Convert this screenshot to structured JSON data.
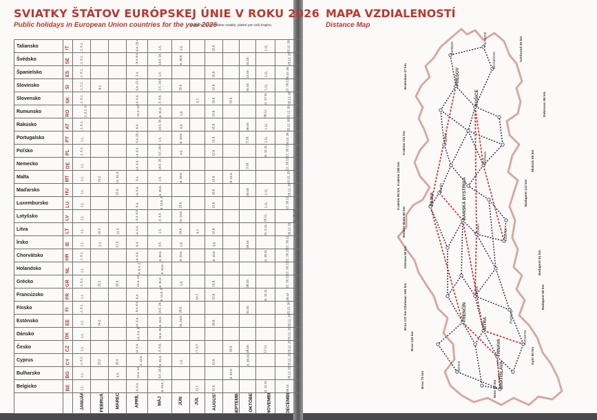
{
  "left_page": {
    "title": "SVIATKY ŠTÁTOV EURÓPSKEJ ÚNIE V ROKU 2026",
    "subtitle": "Public holidays in European Union countries for the year 2026",
    "note": "Uvedené sú len štátne sviatky, platné pre celú krajinu."
  },
  "table": {
    "months": [
      "JANUÁR",
      "FEBRUÁR",
      "MAREC",
      "APRÍL",
      "MÁJ",
      "JÚN",
      "JÚL",
      "AUGUST",
      "SEPTEMBER",
      "OKTÓBER",
      "NOVEMBER",
      "DECEMBER"
    ],
    "countries": [
      {
        "name": "Taliansko",
        "code": "IT",
        "cells": [
          "1.1. 6.1.",
          "",
          "",
          "5.4. 6.4. 25.4.",
          "1.5.",
          "2.6.",
          "",
          "15.8.",
          "",
          "",
          "1.11.",
          "8.12. 25.12. 26.12."
        ]
      },
      {
        "name": "Švédsko",
        "code": "SE",
        "cells": [
          "1.1. 6.1.",
          "",
          "",
          "3.4. 5.4. 6.4.",
          "1.5. 14.5. 24.5.",
          "6.6. 20.6.",
          "",
          "",
          "",
          "31.10.",
          "",
          "24.12. 25.12. 26.12."
        ]
      },
      {
        "name": "Španielsko",
        "code": "ES",
        "cells": [
          "1.1. 6.1.",
          "",
          "",
          "3.4.",
          "1.5.",
          "",
          "",
          "15.8.",
          "",
          "12.10.",
          "1.11.",
          "6.12. 8.12. 25.12."
        ]
      },
      {
        "name": "Slovinsko",
        "code": "SI",
        "cells": [
          "1.1. 2.1.",
          "8.2.",
          "",
          "5.4. 6.4. 27.4.",
          "1.5. 2.5. 24.5.",
          "25.6.",
          "",
          "15.8.",
          "",
          "31.10.",
          "1.11.",
          "25.12. 26.12."
        ]
      },
      {
        "name": "Slovensko",
        "code": "SK",
        "cells": [
          "1.1. 6.1.",
          "",
          "",
          "3.4. 6.4.",
          "1.5. 8.5.",
          "",
          "5.7.",
          "29.8.",
          "15.9.",
          "",
          "1.11. 17.11.",
          "24.12. 25.12. 26.12."
        ]
      },
      {
        "name": "Rumunsko",
        "code": "RO",
        "cells": [
          "1.1. 2.1. 6.1. 24.1.",
          "",
          "",
          "10.4. 12.4. 13.4.",
          "1.5. 31.5.",
          "1.6.",
          "",
          "15.8.",
          "",
          "",
          "30.11.",
          "1.12. 25.12. 26.12."
        ]
      },
      {
        "name": "Rakúsko",
        "code": "AT",
        "cells": [
          "1.1. 6.1.",
          "",
          "",
          "6.4.",
          "1.5. 14.5. 25.5.",
          "4.6.",
          "",
          "15.8.",
          "",
          "26.10.",
          "1.11.",
          "8.12. 25.12. 26.12."
        ]
      },
      {
        "name": "Portugalsko",
        "code": "PT",
        "cells": [
          "1.1.",
          "",
          "",
          "3.4. 5.4. 25.4.",
          "1.5.",
          "4.6. 10.6.",
          "",
          "15.8.",
          "",
          "5.10.",
          "1.11.",
          "1.12. 8.12. 25.12."
        ]
      },
      {
        "name": "Poľsko",
        "code": "PL",
        "cells": [
          "1.1. 6.1.",
          "",
          "",
          "5.4. 6.4.",
          "1.5. 3.5. 24.5.",
          "4.6.",
          "",
          "15.8.",
          "",
          "",
          "1.11. 11.11.",
          "25.12. 26.12."
        ]
      },
      {
        "name": "Nemecko",
        "code": "DE",
        "cells": [
          "1.1.",
          "",
          "",
          "3.4. 6.4.",
          "1.5. 14.5. 25.5.",
          "",
          "",
          "",
          "",
          "3.10.",
          "",
          "25.12. 26.12."
        ]
      },
      {
        "name": "Malta",
        "code": "MT",
        "cells": [
          "1.1.",
          "10.2.",
          "19.3. 31.3.",
          "3.4.",
          "1.5.",
          "7.6. 29.6.",
          "",
          "15.8.",
          "8.9. 21.9.",
          "",
          "",
          "8.12. 13.12. 25.12."
        ]
      },
      {
        "name": "Maďarsko",
        "code": "HU",
        "cells": [
          "1.1.",
          "",
          "15.3.",
          "3.4. 6.4.",
          "1.5. 25.5.",
          "",
          "",
          "20.8.",
          "",
          "23.10.",
          "1.11.",
          "24.12. 25.12. 26.12."
        ]
      },
      {
        "name": "Luxembursko",
        "code": "LU",
        "cells": [
          "1.1.",
          "",
          "",
          "6.4.",
          "1.5. 9.5. 14.5. 25.5.",
          "23.6.",
          "",
          "15.8.",
          "",
          "",
          "1.11.",
          "25.12. 26.12."
        ]
      },
      {
        "name": "Lotyšsko",
        "code": "LV",
        "cells": [
          "1.1.",
          "",
          "",
          "3.4. 5.4. 6.4.",
          "1.5. 4.5.",
          "23.6. 24.6.",
          "",
          "",
          "",
          "",
          "18.11.",
          "24.12. 25.12. 26.12. 31.12."
        ]
      },
      {
        "name": "Litva",
        "code": "LT",
        "cells": [
          "1.1.",
          "16.2.",
          "11.3.",
          "5.4. 6.4.",
          "1.5.",
          "24.6.",
          "6.7.",
          "15.8.",
          "",
          "",
          "1.11. 2.11.",
          "24.12. 25.12. 26.12."
        ]
      },
      {
        "name": "Írsko",
        "code": "IE",
        "cells": [
          "1.1.",
          "2.2.",
          "17.3.",
          "6.4.",
          "4.5.",
          "1.6.",
          "",
          "3.8.",
          "",
          "26.10.",
          "",
          "25.12. 26.12."
        ]
      },
      {
        "name": "Chorvátsko",
        "code": "HR",
        "cells": [
          "1.1. 6.1.",
          "",
          "",
          "5.4. 6.4.",
          "1.5. 30.5.",
          "4.6. 22.6.",
          "",
          "5.8. 15.8.",
          "",
          "",
          "1.11. 18.11.",
          "25.12. 26.12."
        ]
      },
      {
        "name": "Holandsko",
        "code": "NL",
        "cells": [
          "1.1.",
          "",
          "",
          "3.4. 5.4. 6.4. 27.4.",
          "5.5. 14.5. 24.5. 25.5.",
          "",
          "",
          "",
          "",
          "",
          "",
          "25.12. 26.12."
        ]
      },
      {
        "name": "Grécko",
        "code": "GR",
        "cells": [
          "1.1. 6.1.",
          "23.2.",
          "25.3.",
          "10.4. 12.4. 13.4.",
          "1.5. 31.5.",
          "1.6.",
          "",
          "15.8.",
          "",
          "28.10.",
          "",
          "25.12. 26.12."
        ]
      },
      {
        "name": "Francúzsko",
        "code": "FR",
        "cells": [
          "1.1.",
          "",
          "",
          "6.4.",
          "1.5. 8.5. 14.5. 25.5.",
          "",
          "14.7.",
          "15.8.",
          "",
          "",
          "1.11. 11.11.",
          "25.12."
        ]
      },
      {
        "name": "Fínsko",
        "code": "FI",
        "cells": [
          "1.1. 6.1.",
          "",
          "",
          "3.4. 5.4. 6.4.",
          "1.5. 14.5. 24.5.",
          "20.6.",
          "",
          "",
          "",
          "31.10.",
          "",
          "6.12. 25.12. 26.12."
        ]
      },
      {
        "name": "Estónsko",
        "code": "EE",
        "cells": [
          "1.1.",
          "24.2.",
          "",
          "3.4. 5.4.",
          "1.5. 24.5.",
          "23.6. 24.6.",
          "",
          "20.8.",
          "",
          "",
          "",
          "24.12. 25.12. 26.12."
        ]
      },
      {
        "name": "Dánsko",
        "code": "DK",
        "cells": [
          "1.1.",
          "",
          "",
          "2.4. 3.4. 5.4. 6.4.",
          "14.5. 24.5. 25.5.",
          "",
          "",
          "",
          "",
          "",
          "",
          "24.12. 25.12. 26.12."
        ]
      },
      {
        "name": "Česko",
        "code": "CZ",
        "cells": [
          "1.1.",
          "",
          "",
          "3.4. 6.4.",
          "1.5. 8.5.",
          "",
          "5.7. 6.7.",
          "",
          "28.9.",
          "28.10.",
          "17.11.",
          "24.12. 25.12. 26.12."
        ]
      },
      {
        "name": "Cyprus",
        "code": "CY",
        "cells": [
          "1.1. 6.1.",
          "23.2.",
          "25.3.",
          "1.4. 10.4. 12.4. 13.4.",
          "1.5. 31.5.",
          "1.6.",
          "",
          "15.8.",
          "",
          "1.10. 28.10.",
          "",
          "24.12. 25.12. 26.12."
        ]
      },
      {
        "name": "Bulharsko",
        "code": "BG",
        "cells": [
          "1.1.",
          "",
          "3.3.",
          "10.4. 12.4. 13.4.",
          "1.5. 6.5. 24.5.",
          "",
          "",
          "",
          "6.9. 22.9.",
          "",
          "",
          "24.12. 25.12. 26.12."
        ]
      },
      {
        "name": "Belgicko",
        "code": "BE",
        "cells": [
          "1.1.",
          "",
          "",
          "5.4. 6.4.",
          "1.5. 14.5. 24.5. 25.5.",
          "",
          "21.7.",
          "15.8.",
          "",
          "",
          "1.11. 11.11.",
          "25.12."
        ]
      }
    ]
  },
  "right_page": {
    "title": "MAPA VZDIALENOSTÍ",
    "subtitle": "Distance Map"
  },
  "map": {
    "cities": [
      "KOŠICE",
      "PREŠOV",
      "ŽILINA",
      "BANSKÁ BYSTRICA",
      "NITRA",
      "TRNAVA",
      "BRATISLAVA",
      "TRENČÍN",
      "Poprad",
      "Martin",
      "Zvolen",
      "Lučenec",
      "Rožňava",
      "Michalovce",
      "Humenné",
      "Bardejov",
      "Piešťany",
      "Senica",
      "Komárno",
      "Levice"
    ],
    "border_distances": [
      "Bratislava 47 km",
      "Kraków 151 km",
      "Kraków 188 km",
      "Kraków 98 km",
      "Miskolc 88 km",
      "Ostrava 50 km",
      "Olomouc 105 km",
      "Brno 137 km",
      "Brno 122 km",
      "Brno 79 km",
      "Budapest 113 km",
      "Budapest 81 km",
      "Budapest 80 km",
      "Győr 80 km",
      "Wien 58 km",
      "Uzhhorod 45 km",
      "Debrecen 95 km",
      "Bielsko-Biała 66 km"
    ],
    "colors": {
      "border": "#d7a8a0",
      "road_dark": "#2b2b48",
      "road_red": "#c63a33",
      "city": "#3a3a3a"
    }
  }
}
